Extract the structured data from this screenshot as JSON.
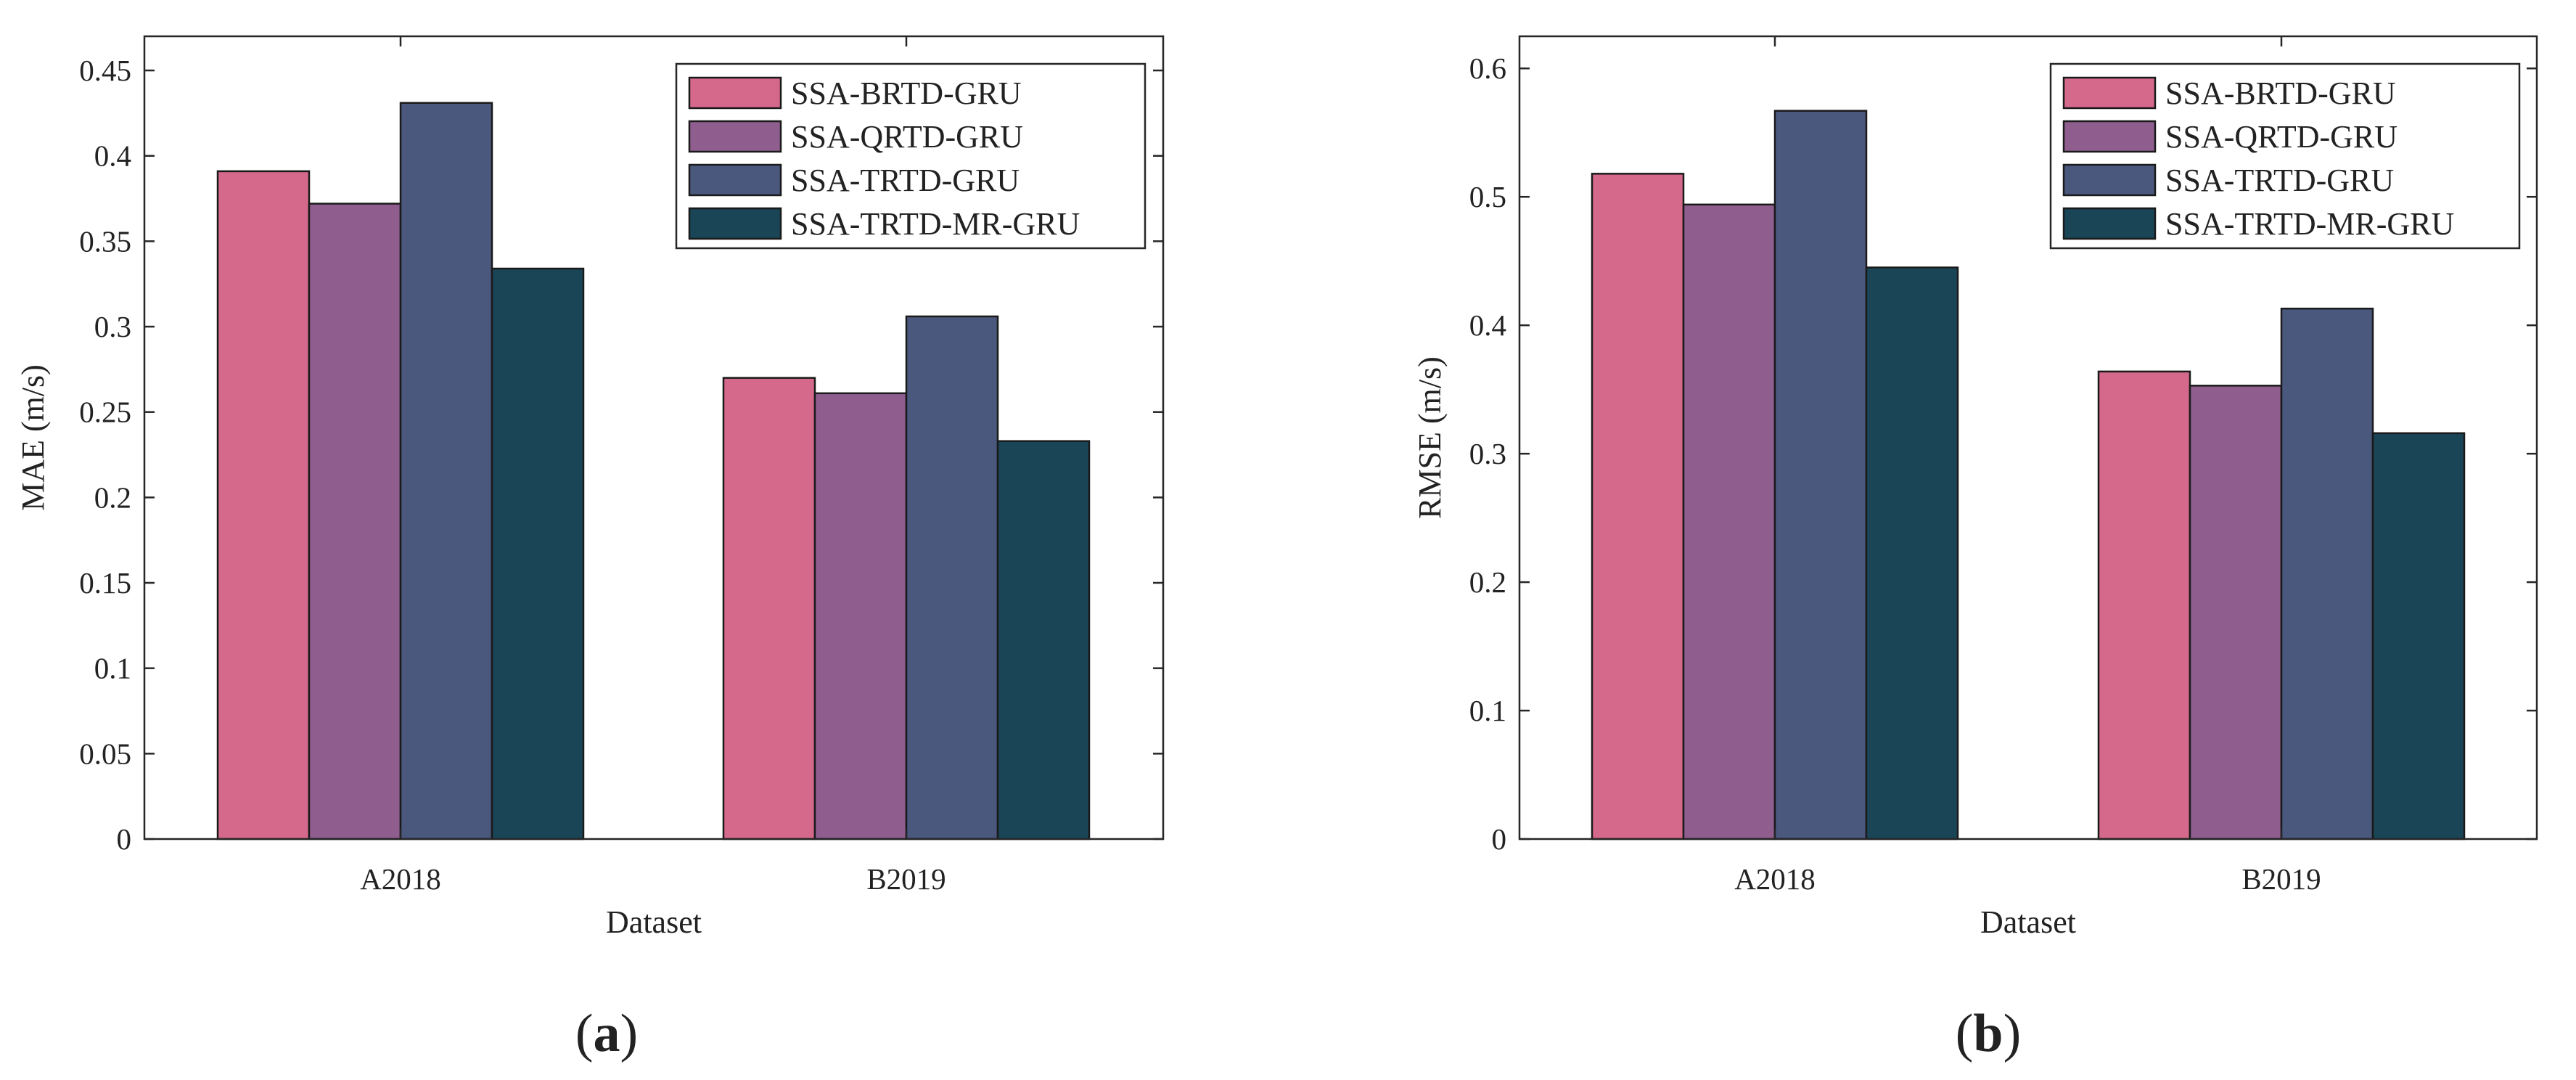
{
  "figure": {
    "panels": [
      {
        "open": "(",
        "letter": "a",
        "close": ")"
      },
      {
        "open": "(",
        "letter": "b",
        "close": ")"
      }
    ]
  },
  "colors": {
    "SSA-BRTD-GRU": "#d5698b",
    "SSA-QRTD-GRU": "#8f5e8f",
    "SSA-TRTD-GRU": "#4a587e",
    "SSA-TRTD-MR-GRU": "#1a4557"
  },
  "chart_data": [
    {
      "type": "bar",
      "panel": "a",
      "title": "",
      "xlabel": "Dataset",
      "ylabel": "MAE (m/s)",
      "categories": [
        "A2018",
        "B2019"
      ],
      "series": [
        {
          "name": "SSA-BRTD-GRU",
          "values": [
            0.391,
            0.27
          ]
        },
        {
          "name": "SSA-QRTD-GRU",
          "values": [
            0.372,
            0.261
          ]
        },
        {
          "name": "SSA-TRTD-GRU",
          "values": [
            0.431,
            0.306
          ]
        },
        {
          "name": "SSA-TRTD-MR-GRU",
          "values": [
            0.334,
            0.233
          ]
        }
      ],
      "ylim": [
        0,
        0.47
      ],
      "yticks": [
        0,
        0.05,
        0.1,
        0.15,
        0.2,
        0.25,
        0.3,
        0.35,
        0.4,
        0.45
      ],
      "ytick_labels": [
        "0",
        "0.05",
        "0.1",
        "0.15",
        "0.2",
        "0.25",
        "0.3",
        "0.35",
        "0.4",
        "0.45"
      ],
      "grid": false,
      "legend": "top-right"
    },
    {
      "type": "bar",
      "panel": "b",
      "title": "",
      "xlabel": "Dataset",
      "ylabel": "RMSE (m/s)",
      "categories": [
        "A2018",
        "B2019"
      ],
      "series": [
        {
          "name": "SSA-BRTD-GRU",
          "values": [
            0.518,
            0.364
          ]
        },
        {
          "name": "SSA-QRTD-GRU",
          "values": [
            0.494,
            0.353
          ]
        },
        {
          "name": "SSA-TRTD-GRU",
          "values": [
            0.567,
            0.413
          ]
        },
        {
          "name": "SSA-TRTD-MR-GRU",
          "values": [
            0.445,
            0.316
          ]
        }
      ],
      "ylim": [
        0,
        0.625
      ],
      "yticks": [
        0,
        0.1,
        0.2,
        0.3,
        0.4,
        0.5,
        0.6
      ],
      "ytick_labels": [
        "0",
        "0.1",
        "0.2",
        "0.3",
        "0.4",
        "0.5",
        "0.6"
      ],
      "grid": false,
      "legend": "top-right"
    }
  ]
}
